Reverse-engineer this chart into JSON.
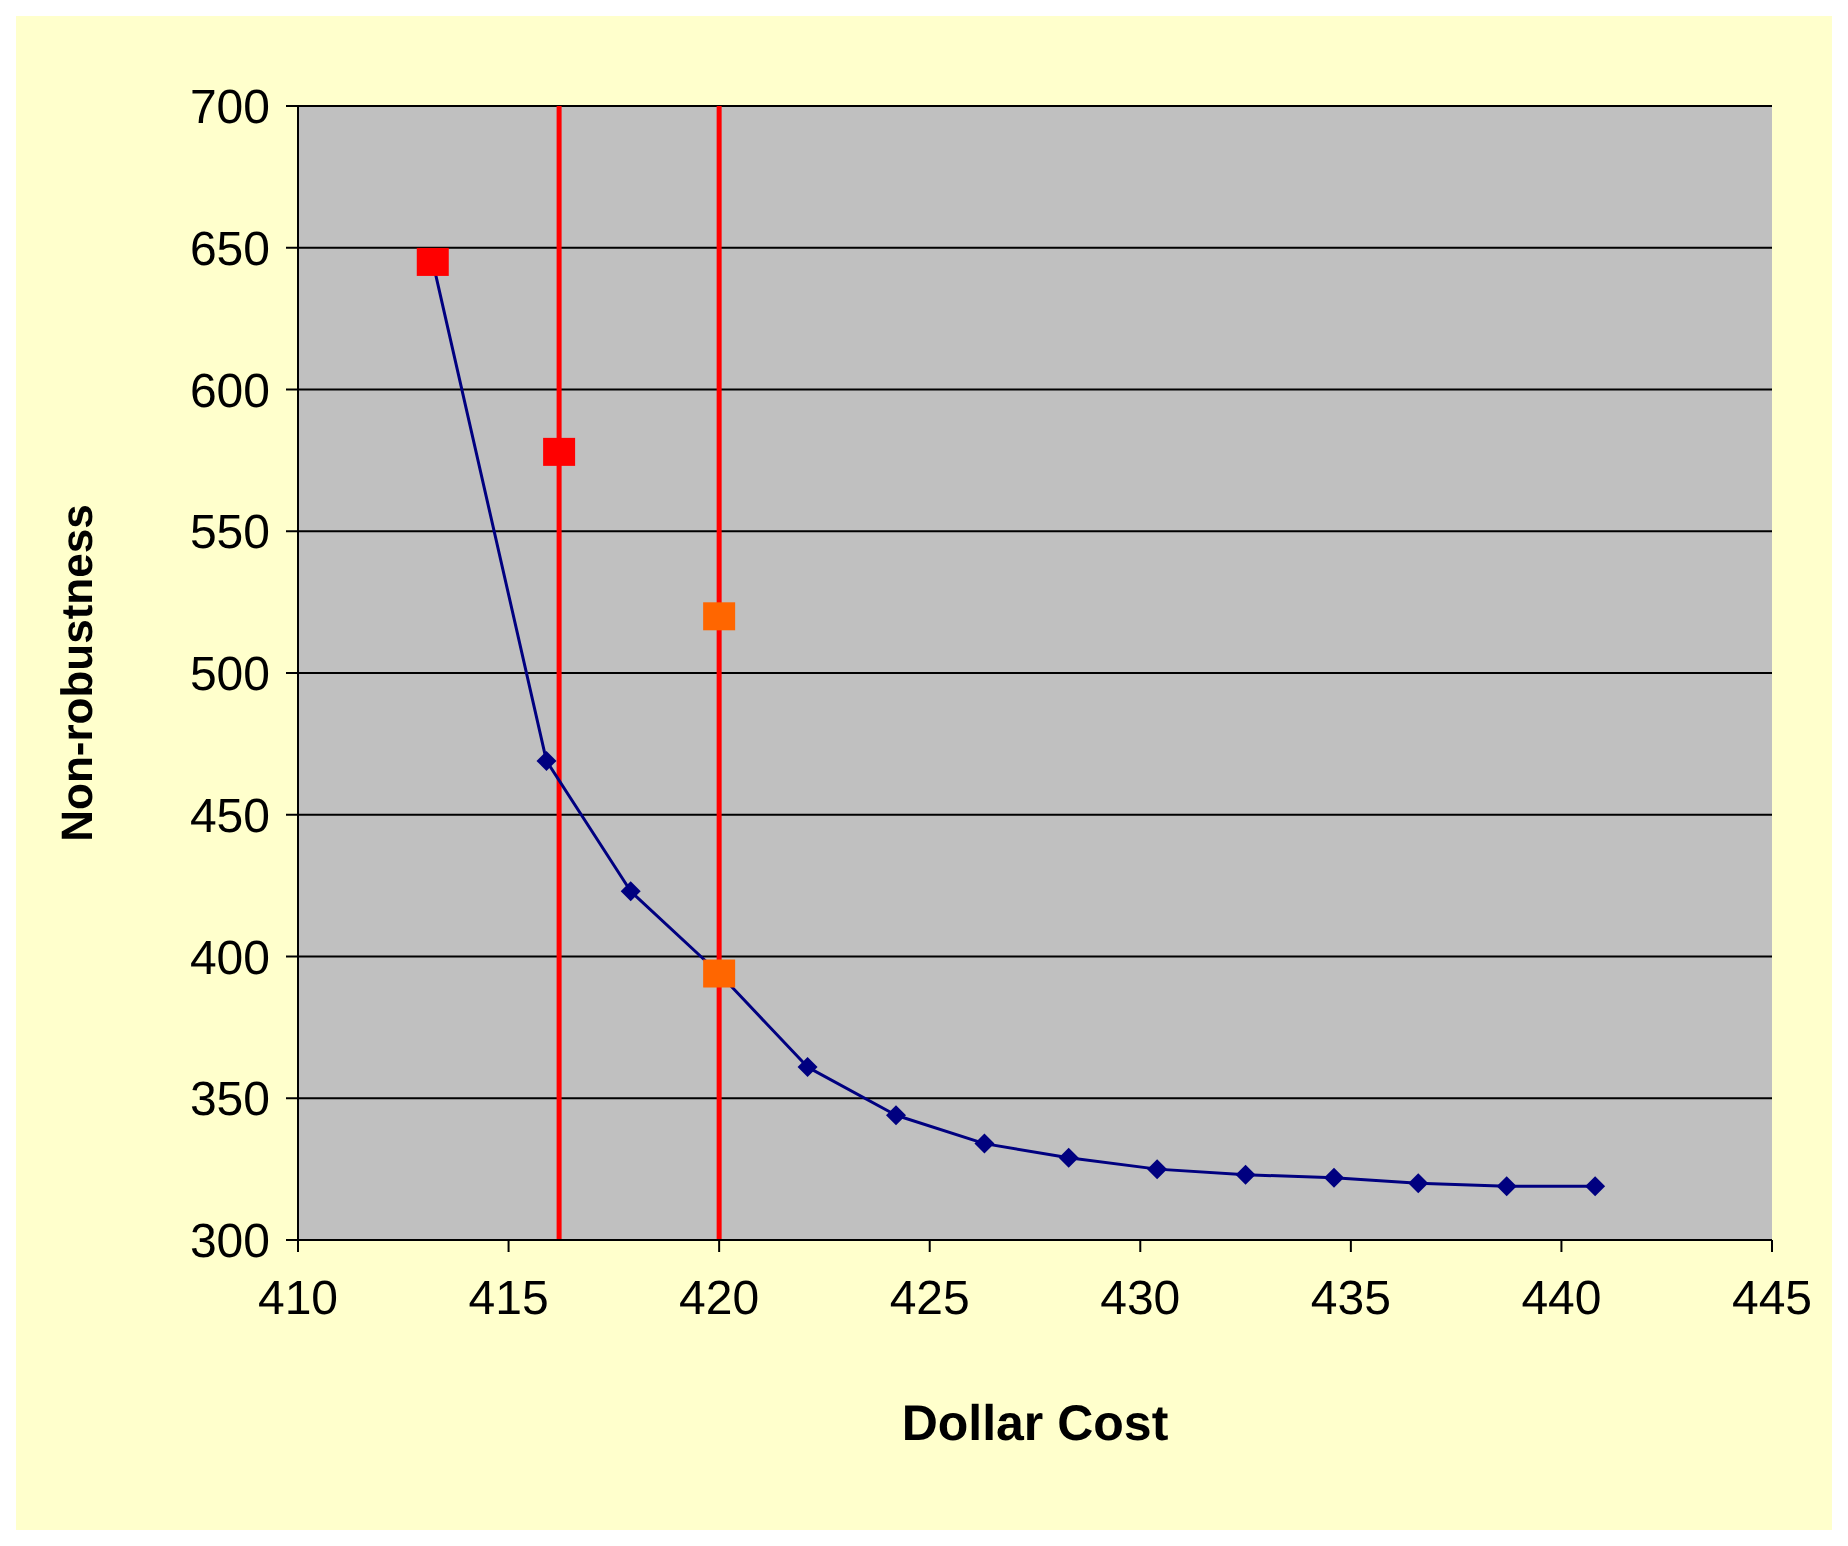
{
  "chart_data": {
    "type": "line",
    "xlabel": "Dollar Cost",
    "ylabel": "Non-robustness",
    "xlim": [
      410,
      445
    ],
    "xticks": [
      410,
      415,
      420,
      425,
      430,
      435,
      440,
      445
    ],
    "ylim": [
      300,
      700
    ],
    "yticks": [
      300,
      350,
      400,
      450,
      500,
      550,
      600,
      650,
      700
    ],
    "grid": "y",
    "line_style": "solid",
    "series": [
      {
        "type": "line",
        "color": "#000080",
        "marker": "diamond",
        "x": [
          413.2,
          415.9,
          417.9,
          420.0,
          422.1,
          424.2,
          426.3,
          428.3,
          430.4,
          432.5,
          434.6,
          436.6,
          438.7,
          440.8
        ],
        "values": [
          645,
          469,
          423,
          394,
          361,
          344,
          334,
          329,
          325,
          323,
          322,
          320,
          319,
          319
        ]
      },
      {
        "type": "scatter",
        "color": "#ff0000",
        "marker": "square",
        "x": [
          413.2,
          416.2
        ],
        "values": [
          645,
          578
        ]
      },
      {
        "type": "scatter",
        "color": "#ff6600",
        "marker": "square",
        "x": [
          420,
          420
        ],
        "values": [
          520,
          394
        ]
      }
    ],
    "ref_lines": [
      {
        "axis": "x",
        "value": 416.2,
        "color": "#ff0000"
      },
      {
        "axis": "x",
        "value": 420,
        "color": "#ff0000"
      }
    ]
  }
}
